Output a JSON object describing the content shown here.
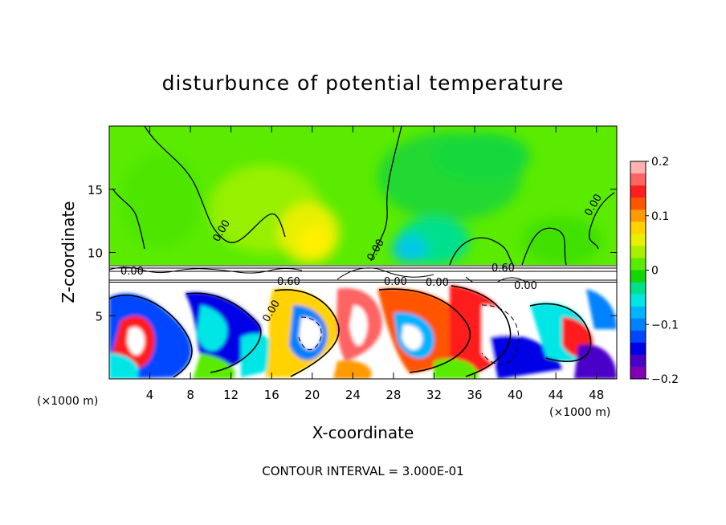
{
  "chart_data": {
    "type": "heatmap",
    "title": "disturbunce of potential temperature",
    "xlabel": "X-coordinate",
    "ylabel": "Z-coordinate",
    "x_unit_left": "(×1000 m)",
    "x_unit_right": "(×1000 m)",
    "footer": "CONTOUR INTERVAL = 3.000E-01",
    "xlim": [
      0,
      50
    ],
    "ylim": [
      0,
      20
    ],
    "x_ticks": [
      4,
      8,
      12,
      16,
      20,
      24,
      28,
      32,
      36,
      40,
      44,
      48
    ],
    "y_ticks": [
      5,
      10,
      15
    ],
    "colorbar": {
      "min": -0.2,
      "max": 0.2,
      "tick_values": [
        0.2,
        0.1,
        0,
        -0.1,
        -0.2
      ],
      "tick_labels": [
        "0.2",
        "0.1",
        "0",
        "−0.1",
        "−0.2"
      ],
      "colors": [
        "#ffb0b0",
        "#ff6464",
        "#ff1e1e",
        "#ff5500",
        "#ff9a00",
        "#ffd200",
        "#e6f000",
        "#a8f000",
        "#5aeb00",
        "#14d600",
        "#00e08c",
        "#00e6e6",
        "#00b4ff",
        "#0082ff",
        "#0046ff",
        "#0000e6",
        "#4b00c8",
        "#8200b4"
      ]
    },
    "contour_labels": [
      "0.00",
      "0.00",
      "0.00",
      "0.00",
      "0.60",
      "0.60",
      "0.00",
      "0.00",
      "0.00",
      "0.00"
    ],
    "regions": [
      {
        "z_range": [
          9,
          20
        ],
        "value": 0.02
      },
      {
        "z_range": [
          7.5,
          9
        ],
        "value": 0
      },
      {
        "z_range": [
          0,
          7.5
        ],
        "value_range": [
          -0.2,
          0.2
        ]
      }
    ]
  }
}
